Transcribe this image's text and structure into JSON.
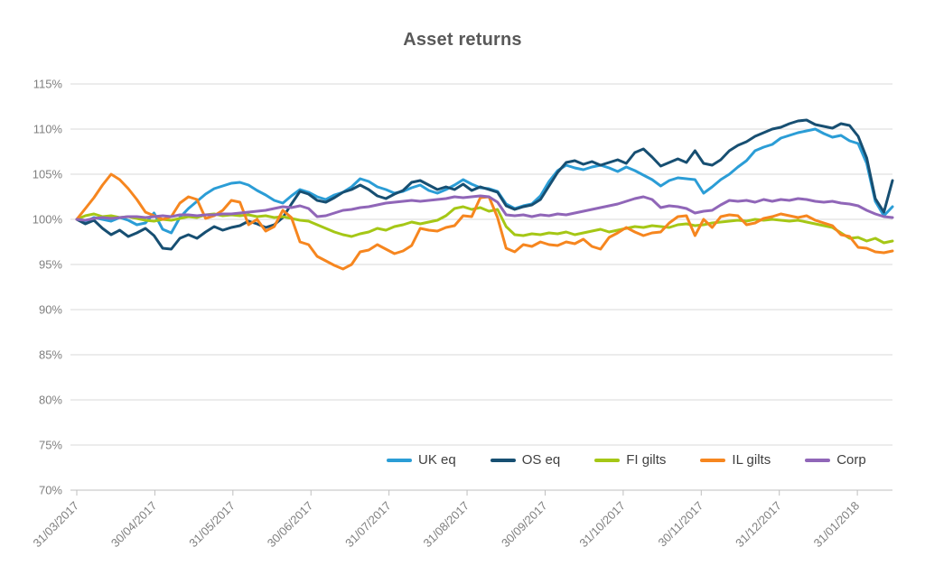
{
  "title": "Asset returns",
  "colors": {
    "title_text": "#595959",
    "axis_text": "#7f7f7f",
    "legend_text": "#404040",
    "gridline": "#d9d9d9",
    "axis_line": "#bfbfbf",
    "background": "#ffffff"
  },
  "legend": {
    "position": "bottom",
    "items": [
      "UK eq",
      "OS eq",
      "FI gilts",
      "IL gilts",
      "Corp"
    ]
  },
  "chart_data": {
    "type": "line",
    "title": "Asset returns",
    "grid": "horizontal",
    "legend_position": "bottom",
    "y_axis": {
      "unit": "%",
      "min": 70,
      "max": 115,
      "tick_step": 5,
      "tick_labels": [
        "70%",
        "75%",
        "80%",
        "85%",
        "90%",
        "95%",
        "100%",
        "105%",
        "110%",
        "115%"
      ]
    },
    "x_axis": {
      "tick_labels": [
        "31/03/2017",
        "30/04/2017",
        "31/05/2017",
        "30/06/2017",
        "31/07/2017",
        "31/08/2017",
        "30/09/2017",
        "31/10/2017",
        "30/11/2017",
        "31/12/2017",
        "31/01/2018"
      ],
      "x_span_in_tick_intervals": 10.45,
      "n_samples": 96,
      "samples_evenly_spaced": true
    },
    "series": [
      {
        "name": "UK eq",
        "color": "#2b9dd6",
        "values": [
          100.0,
          99.7,
          100.2,
          100.0,
          99.8,
          100.2,
          99.9,
          99.4,
          99.6,
          100.7,
          98.9,
          98.5,
          100.2,
          101.2,
          102.0,
          102.8,
          103.4,
          103.7,
          104.0,
          104.1,
          103.8,
          103.2,
          102.7,
          102.1,
          101.8,
          102.6,
          103.3,
          103.0,
          102.5,
          102.2,
          102.7,
          103.0,
          103.6,
          104.5,
          104.2,
          103.6,
          103.3,
          102.9,
          103.1,
          103.5,
          103.8,
          103.2,
          102.9,
          103.3,
          103.8,
          104.4,
          103.9,
          103.5,
          103.4,
          103.1,
          101.7,
          101.2,
          101.5,
          101.7,
          102.6,
          104.2,
          105.4,
          106.0,
          105.7,
          105.5,
          105.8,
          106.0,
          105.7,
          105.3,
          105.8,
          105.4,
          104.9,
          104.4,
          103.7,
          104.3,
          104.6,
          104.5,
          104.4,
          102.9,
          103.6,
          104.4,
          105.0,
          105.8,
          106.5,
          107.6,
          108.0,
          108.3,
          109.0,
          109.3,
          109.6,
          109.8,
          110.0,
          109.5,
          109.1,
          109.3,
          108.7,
          108.4,
          106.2,
          102.0,
          100.4,
          101.4
        ]
      },
      {
        "name": "OS eq",
        "color": "#174f72",
        "values": [
          100.0,
          99.5,
          99.9,
          99.0,
          98.3,
          98.8,
          98.1,
          98.5,
          99.0,
          98.2,
          96.8,
          96.7,
          97.9,
          98.3,
          97.9,
          98.6,
          99.2,
          98.8,
          99.1,
          99.3,
          99.8,
          99.5,
          99.1,
          99.4,
          100.2,
          101.7,
          103.1,
          102.8,
          102.1,
          101.9,
          102.4,
          103.0,
          103.3,
          103.8,
          103.3,
          102.6,
          102.3,
          102.8,
          103.2,
          104.1,
          104.3,
          103.8,
          103.3,
          103.6,
          103.3,
          103.9,
          103.2,
          103.6,
          103.3,
          103.0,
          101.5,
          101.1,
          101.4,
          101.6,
          102.2,
          103.7,
          105.2,
          106.3,
          106.5,
          106.1,
          106.4,
          106.0,
          106.3,
          106.6,
          106.2,
          107.4,
          107.8,
          106.9,
          105.9,
          106.3,
          106.7,
          106.3,
          107.6,
          106.2,
          106.0,
          106.6,
          107.6,
          108.2,
          108.6,
          109.2,
          109.6,
          110.0,
          110.2,
          110.6,
          110.9,
          111.0,
          110.5,
          110.3,
          110.1,
          110.6,
          110.4,
          109.2,
          106.8,
          102.3,
          100.8,
          104.3
        ]
      },
      {
        "name": "FI gilts",
        "color": "#a5c716",
        "values": [
          100.0,
          100.4,
          100.6,
          100.3,
          100.4,
          100.2,
          100.3,
          100.1,
          99.9,
          99.8,
          100.0,
          99.9,
          100.1,
          100.3,
          100.2,
          100.5,
          100.6,
          100.4,
          100.5,
          100.4,
          100.5,
          100.3,
          100.4,
          100.2,
          100.3,
          100.1,
          99.9,
          99.8,
          99.4,
          99.0,
          98.6,
          98.3,
          98.1,
          98.4,
          98.6,
          99.0,
          98.8,
          99.2,
          99.4,
          99.7,
          99.5,
          99.7,
          99.9,
          100.4,
          101.2,
          101.4,
          101.1,
          101.3,
          100.9,
          101.1,
          99.2,
          98.3,
          98.2,
          98.4,
          98.3,
          98.5,
          98.4,
          98.6,
          98.3,
          98.5,
          98.7,
          98.9,
          98.6,
          98.8,
          99.0,
          99.2,
          99.1,
          99.3,
          99.2,
          99.1,
          99.4,
          99.5,
          99.3,
          99.4,
          99.6,
          99.7,
          99.8,
          99.9,
          99.8,
          100.0,
          99.9,
          100.0,
          99.9,
          99.8,
          99.9,
          99.7,
          99.5,
          99.3,
          99.1,
          98.5,
          97.9,
          98.0,
          97.6,
          97.9,
          97.4,
          97.6
        ]
      },
      {
        "name": "IL gilts",
        "color": "#f6861f",
        "values": [
          100.0,
          101.2,
          102.4,
          103.8,
          105.0,
          104.4,
          103.4,
          102.2,
          100.8,
          100.4,
          100.0,
          100.3,
          101.8,
          102.5,
          102.2,
          100.1,
          100.4,
          101.0,
          102.1,
          101.9,
          99.4,
          100.0,
          98.7,
          99.2,
          101.0,
          100.2,
          97.5,
          97.2,
          95.9,
          95.4,
          94.9,
          94.5,
          95.0,
          96.4,
          96.6,
          97.2,
          96.7,
          96.2,
          96.5,
          97.1,
          99.0,
          98.8,
          98.7,
          99.1,
          99.3,
          100.4,
          100.3,
          102.4,
          102.5,
          100.2,
          96.8,
          96.4,
          97.2,
          97.0,
          97.5,
          97.2,
          97.1,
          97.5,
          97.3,
          97.8,
          97.0,
          96.7,
          98.0,
          98.5,
          99.1,
          98.6,
          98.2,
          98.5,
          98.6,
          99.6,
          100.3,
          100.4,
          98.2,
          100.0,
          99.1,
          100.3,
          100.5,
          100.4,
          99.4,
          99.6,
          100.1,
          100.3,
          100.6,
          100.4,
          100.2,
          100.4,
          99.9,
          99.6,
          99.3,
          98.3,
          98.1,
          96.9,
          96.8,
          96.4,
          96.3,
          96.5
        ]
      },
      {
        "name": "Corp",
        "color": "#9066b8",
        "values": [
          100.0,
          99.9,
          100.1,
          100.2,
          100.1,
          100.2,
          100.3,
          100.3,
          100.2,
          100.3,
          100.4,
          100.3,
          100.5,
          100.5,
          100.4,
          100.5,
          100.5,
          100.6,
          100.6,
          100.7,
          100.8,
          100.9,
          101.0,
          101.2,
          101.4,
          101.3,
          101.5,
          101.2,
          100.3,
          100.4,
          100.7,
          101.0,
          101.1,
          101.3,
          101.4,
          101.6,
          101.8,
          101.9,
          102.0,
          102.1,
          102.0,
          102.1,
          102.2,
          102.3,
          102.5,
          102.4,
          102.5,
          102.6,
          102.5,
          101.9,
          100.5,
          100.4,
          100.5,
          100.3,
          100.5,
          100.4,
          100.6,
          100.5,
          100.7,
          100.9,
          101.1,
          101.3,
          101.5,
          101.7,
          102.0,
          102.3,
          102.5,
          102.2,
          101.3,
          101.5,
          101.4,
          101.2,
          100.7,
          100.9,
          101.0,
          101.6,
          102.1,
          102.0,
          102.1,
          101.9,
          102.2,
          102.0,
          102.2,
          102.1,
          102.3,
          102.2,
          102.0,
          101.9,
          102.0,
          101.8,
          101.7,
          101.5,
          101.0,
          100.6,
          100.3,
          100.2
        ]
      }
    ]
  }
}
